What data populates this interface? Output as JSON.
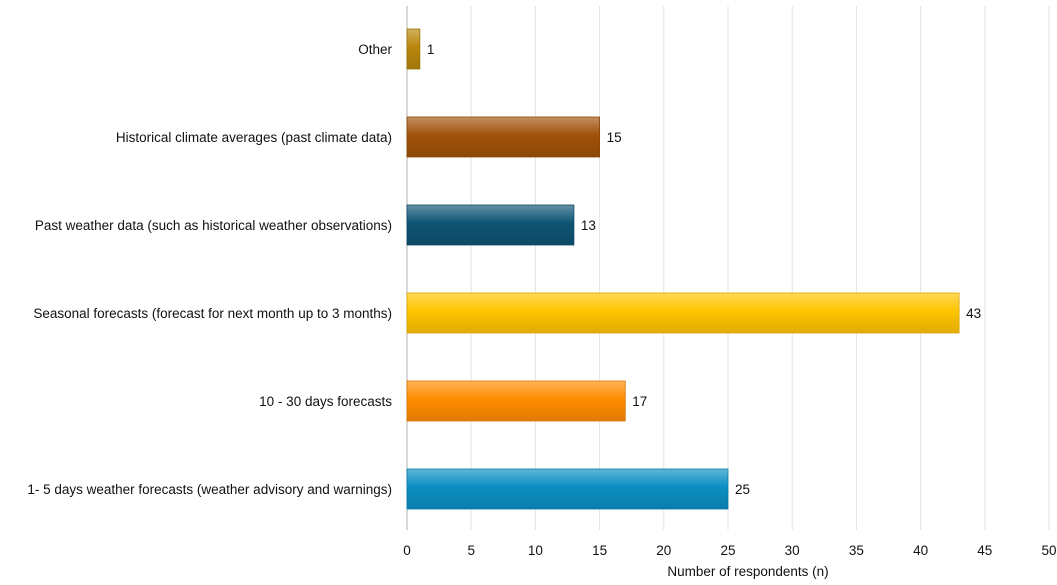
{
  "chart_data": {
    "type": "bar",
    "orientation": "horizontal",
    "categories": [
      "Other",
      "Historical climate averages (past climate data)",
      "Past weather data (such as historical weather observations)",
      "Seasonal forecasts (forecast for next month up to 3 months)",
      "10 - 30 days forecasts",
      "1- 5 days weather forecasts (weather advisory and warnings)"
    ],
    "values": [
      1,
      15,
      13,
      43,
      17,
      25
    ],
    "colors": [
      "#b8860b",
      "#a0520a",
      "#0f5474",
      "#ffc400",
      "#ff8c00",
      "#0a8ec2"
    ],
    "xlabel": "Number of respondents (n)",
    "ylabel": "",
    "xlim": [
      0,
      50
    ],
    "xticks": [
      0,
      5,
      10,
      15,
      20,
      25,
      30,
      35,
      40,
      45,
      50
    ],
    "grid": "vertical",
    "legend": "none"
  }
}
